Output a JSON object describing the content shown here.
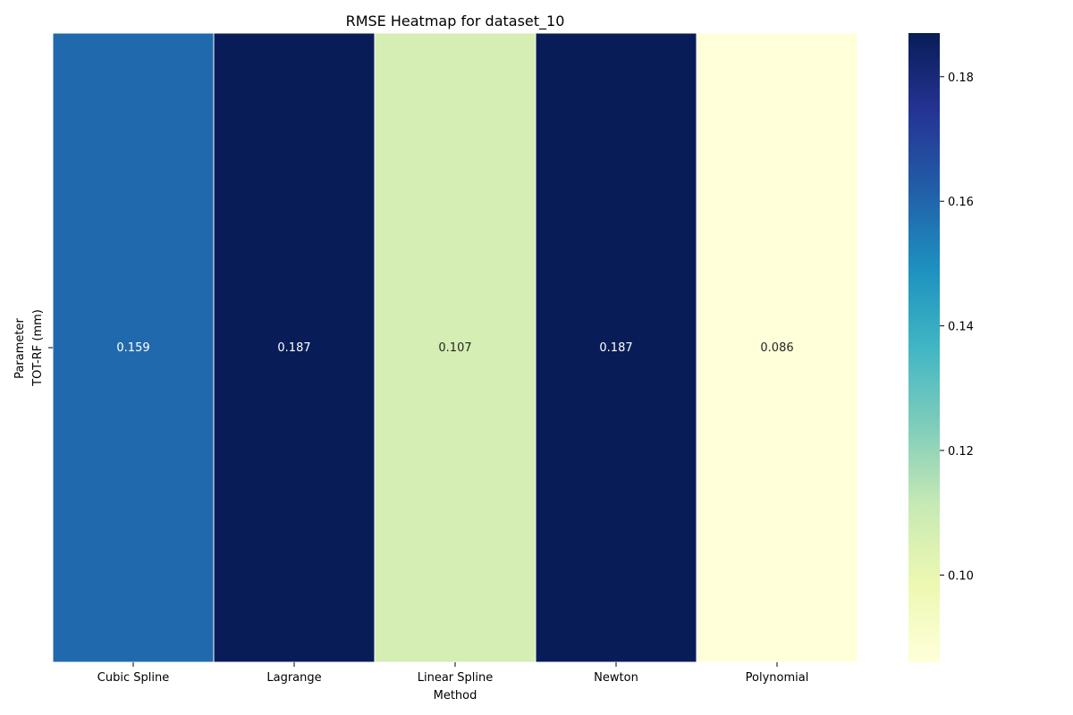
{
  "chart_data": {
    "type": "heatmap",
    "title": "RMSE Heatmap for dataset_10",
    "xlabel": "Method",
    "ylabel": "Parameter",
    "columns": [
      "Cubic Spline",
      "Lagrange",
      "Linear Spline",
      "Newton",
      "Polynomial"
    ],
    "rows": [
      "TOT-RF (mm)"
    ],
    "values": [
      [
        0.159,
        0.187,
        0.107,
        0.187,
        0.086
      ]
    ],
    "value_labels": [
      [
        "0.159",
        "0.187",
        "0.107",
        "0.187",
        "0.086"
      ]
    ],
    "colormap": "YlGnBu",
    "colorbar": {
      "vmin": 0.086,
      "vmax": 0.187,
      "ticks": [
        0.1,
        0.12,
        0.14,
        0.16,
        0.18
      ],
      "tick_labels": [
        "0.10",
        "0.12",
        "0.14",
        "0.16",
        "0.18"
      ]
    },
    "colors": {
      "text_dark": "#262626",
      "text_light": "#ffffff",
      "cell_border": "#ffffff"
    }
  }
}
